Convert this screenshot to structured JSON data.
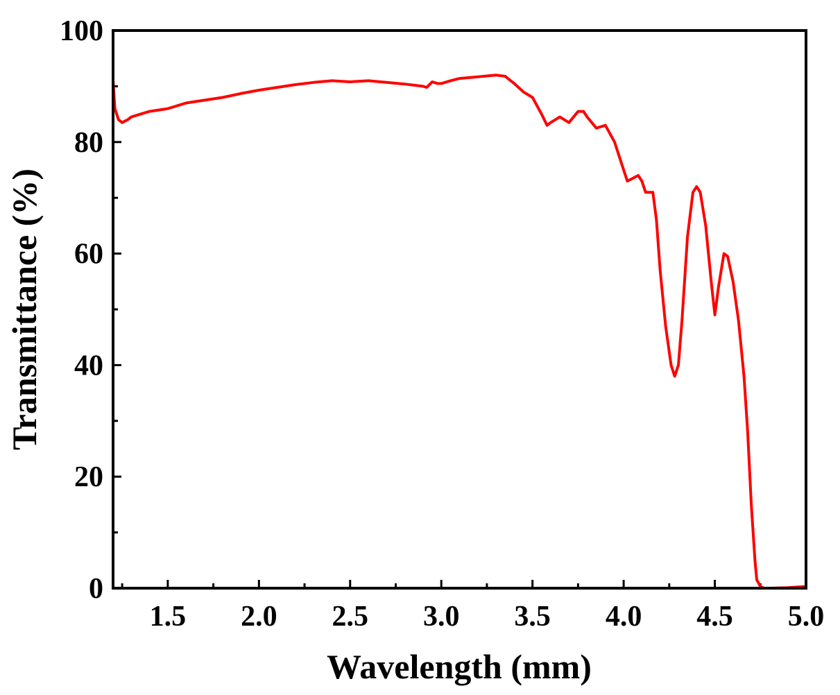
{
  "chart_data": {
    "type": "line",
    "title": "",
    "xlabel": "Wavelength (mm)",
    "ylabel": "Transmittance (%)",
    "xlim": [
      1.2,
      5.0
    ],
    "ylim": [
      0,
      100
    ],
    "x_ticks": [
      1.5,
      2.0,
      2.5,
      3.0,
      3.5,
      4.0,
      4.5,
      5.0
    ],
    "x_tick_labels": [
      "1.5",
      "2.0",
      "2.5",
      "3.0",
      "3.5",
      "4.0",
      "4.5",
      "5.0"
    ],
    "y_ticks": [
      0,
      20,
      40,
      60,
      80,
      100
    ],
    "y_tick_labels": [
      "0",
      "20",
      "40",
      "60",
      "80",
      "100"
    ],
    "grid": false,
    "series": [
      {
        "color": "#ff0000",
        "x": [
          1.2,
          1.21,
          1.22,
          1.23,
          1.25,
          1.28,
          1.3,
          1.35,
          1.4,
          1.5,
          1.6,
          1.7,
          1.8,
          1.9,
          2.0,
          2.1,
          2.2,
          2.3,
          2.4,
          2.5,
          2.6,
          2.7,
          2.8,
          2.9,
          2.92,
          2.95,
          2.98,
          3.0,
          3.05,
          3.1,
          3.2,
          3.3,
          3.35,
          3.4,
          3.45,
          3.5,
          3.55,
          3.58,
          3.6,
          3.65,
          3.7,
          3.75,
          3.78,
          3.8,
          3.85,
          3.9,
          3.95,
          4.0,
          4.02,
          4.05,
          4.08,
          4.1,
          4.12,
          4.14,
          4.16,
          4.18,
          4.2,
          4.23,
          4.26,
          4.28,
          4.3,
          4.32,
          4.35,
          4.38,
          4.4,
          4.42,
          4.45,
          4.48,
          4.5,
          4.52,
          4.55,
          4.57,
          4.6,
          4.63,
          4.66,
          4.68,
          4.7,
          4.72,
          4.73,
          4.75,
          4.77,
          4.8,
          4.9,
          5.0
        ],
        "y": [
          91,
          86,
          85,
          84,
          83.5,
          84,
          84.5,
          85,
          85.5,
          86,
          87,
          87.5,
          88,
          88.7,
          89.3,
          89.8,
          90.3,
          90.7,
          91,
          90.8,
          91,
          90.7,
          90.4,
          90,
          89.8,
          90.8,
          90.5,
          90.5,
          91,
          91.4,
          91.7,
          92,
          91.8,
          90.5,
          89,
          88,
          85,
          83,
          83.5,
          84.5,
          83.5,
          85.5,
          85.5,
          84.5,
          82.5,
          83,
          80,
          75,
          73,
          73.5,
          74,
          73,
          71,
          71,
          71,
          66,
          57,
          47,
          40,
          38,
          40,
          48,
          63,
          71,
          72,
          71,
          65,
          55,
          49,
          54,
          60,
          59.5,
          55,
          48,
          38,
          28,
          15,
          5,
          1.5,
          0.3,
          0,
          0,
          0.1,
          0.3
        ]
      }
    ]
  }
}
